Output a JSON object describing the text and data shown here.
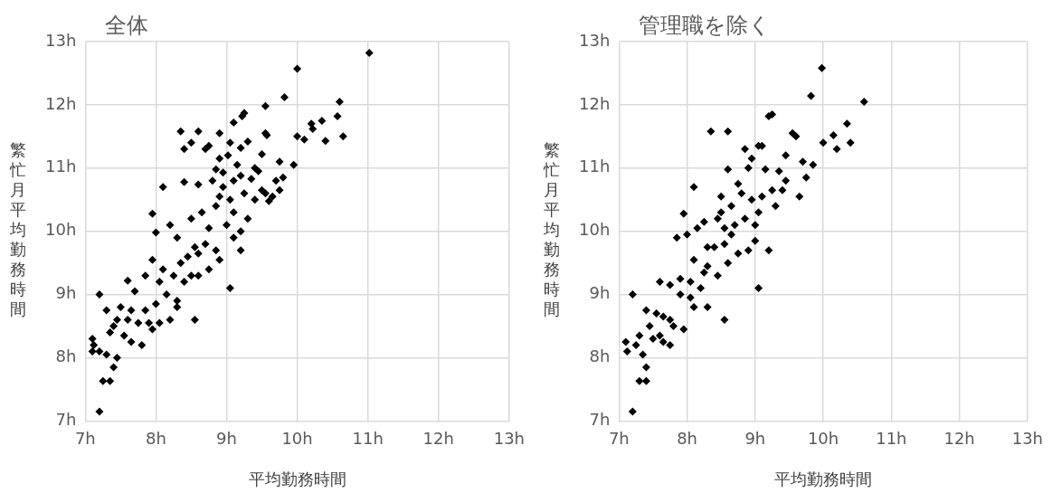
{
  "chart_data": [
    {
      "type": "scatter",
      "title": "全体",
      "xlabel": "平均勤務時間",
      "ylabel": "繁忙月平均勤務時間",
      "xlim": [
        7,
        13
      ],
      "ylim": [
        7,
        13
      ],
      "xticks": [
        {
          "value": 7,
          "label": "7h"
        },
        {
          "value": 8,
          "label": "8h"
        },
        {
          "value": 9,
          "label": "9h"
        },
        {
          "value": 10,
          "label": "10h"
        },
        {
          "value": 11,
          "label": "11h"
        },
        {
          "value": 12,
          "label": "12h"
        },
        {
          "value": 13,
          "label": "13h"
        }
      ],
      "yticks": [
        {
          "value": 7,
          "label": "7h"
        },
        {
          "value": 8,
          "label": "8h"
        },
        {
          "value": 9,
          "label": "9h"
        },
        {
          "value": 10,
          "label": "10h"
        },
        {
          "value": 11,
          "label": "11h"
        },
        {
          "value": 12,
          "label": "12h"
        },
        {
          "value": 13,
          "label": "13h"
        }
      ],
      "grid": true,
      "legend": false,
      "marker": "diamond",
      "color": "#000000",
      "x": [
        11.02,
        10.0,
        9.82,
        10.6,
        9.55,
        9.25,
        9.22,
        9.1,
        8.35,
        8.6,
        8.9,
        10.57,
        10.35,
        10.2,
        10.22,
        10.65,
        10.0,
        10.4,
        10.1,
        9.05,
        9.2,
        9.02,
        9.55,
        9.57,
        9.3,
        8.5,
        8.75,
        8.9,
        8.4,
        9.5,
        9.75,
        9.95,
        8.4,
        8.6,
        8.85,
        8.95,
        9.2,
        9.1,
        9.35,
        9.5,
        9.55,
        9.75,
        9.8,
        9.65,
        9.6,
        8.1,
        7.95,
        8.2,
        8.0,
        8.5,
        8.65,
        8.75,
        8.85,
        8.9,
        9.05,
        9.1,
        9.3,
        9.2,
        9.0,
        8.55,
        8.3,
        8.45,
        8.6,
        8.7,
        8.85,
        8.9,
        8.75,
        8.5,
        9.2,
        9.1,
        8.35,
        7.95,
        8.1,
        8.25,
        7.85,
        7.6,
        7.7,
        8.05,
        8.15,
        8.3,
        8.0,
        7.65,
        7.5,
        7.3,
        7.45,
        7.2,
        7.6,
        7.75,
        7.9,
        8.05,
        8.2,
        8.55,
        9.05,
        8.6,
        7.85,
        7.4,
        7.55,
        7.65,
        7.35,
        7.1,
        7.12,
        7.2,
        7.1,
        7.3,
        7.4,
        7.45,
        7.35,
        7.25,
        7.2,
        7.95,
        7.8,
        8.3,
        8.4,
        9.4,
        9.25,
        9.45,
        9.4,
        9.7,
        9.15,
        8.7,
        8.8,
        8.95
      ],
      "values": [
        12.82,
        12.57,
        12.12,
        12.05,
        11.98,
        11.87,
        11.82,
        11.72,
        11.58,
        11.58,
        11.55,
        11.82,
        11.75,
        11.7,
        11.62,
        11.5,
        11.5,
        11.43,
        11.45,
        11.4,
        11.32,
        11.2,
        11.55,
        11.52,
        11.42,
        11.4,
        11.35,
        11.15,
        11.3,
        11.22,
        11.1,
        11.05,
        10.78,
        10.74,
        10.98,
        10.93,
        10.88,
        10.8,
        10.83,
        10.65,
        10.6,
        10.65,
        10.85,
        10.55,
        10.48,
        10.7,
        10.28,
        10.1,
        9.98,
        10.2,
        10.3,
        10.05,
        10.4,
        10.55,
        10.5,
        10.3,
        10.2,
        10.0,
        10.1,
        9.75,
        9.9,
        9.6,
        9.65,
        9.8,
        9.7,
        9.55,
        9.4,
        9.3,
        9.7,
        9.9,
        9.5,
        9.55,
        9.4,
        9.3,
        9.3,
        9.22,
        9.05,
        9.2,
        9.0,
        8.9,
        8.85,
        8.75,
        8.8,
        8.75,
        8.6,
        9.0,
        8.6,
        8.55,
        8.55,
        8.55,
        8.6,
        8.6,
        9.1,
        9.3,
        8.75,
        8.5,
        8.35,
        8.25,
        8.4,
        8.3,
        8.2,
        8.1,
        8.1,
        8.05,
        7.85,
        8.0,
        7.63,
        7.63,
        7.15,
        8.45,
        8.2,
        8.8,
        9.2,
        10.5,
        10.6,
        10.95,
        11.0,
        10.8,
        11.05,
        11.3,
        10.8,
        10.7
      ]
    },
    {
      "type": "scatter",
      "title": "管理職を除く",
      "xlabel": "平均勤務時間",
      "ylabel": "繁忙月平均勤務時間",
      "xlim": [
        7,
        13
      ],
      "ylim": [
        7,
        13
      ],
      "xticks": [
        {
          "value": 7,
          "label": "7h"
        },
        {
          "value": 8,
          "label": "8h"
        },
        {
          "value": 9,
          "label": "9h"
        },
        {
          "value": 10,
          "label": "10h"
        },
        {
          "value": 11,
          "label": "11h"
        },
        {
          "value": 12,
          "label": "12h"
        },
        {
          "value": 13,
          "label": "13h"
        }
      ],
      "yticks": [
        {
          "value": 7,
          "label": "7h"
        },
        {
          "value": 8,
          "label": "8h"
        },
        {
          "value": 9,
          "label": "9h"
        },
        {
          "value": 10,
          "label": "10h"
        },
        {
          "value": 11,
          "label": "11h"
        },
        {
          "value": 12,
          "label": "12h"
        },
        {
          "value": 13,
          "label": "13h"
        }
      ],
      "grid": true,
      "legend": false,
      "marker": "diamond",
      "color": "#000000",
      "x": [
        9.98,
        9.82,
        10.6,
        9.25,
        9.2,
        10.35,
        10.15,
        10.0,
        10.2,
        10.4,
        8.35,
        8.6,
        9.05,
        9.1,
        9.55,
        9.6,
        8.95,
        8.85,
        9.45,
        9.7,
        9.85,
        8.6,
        8.9,
        9.15,
        9.35,
        9.45,
        9.75,
        9.4,
        9.65,
        8.75,
        8.8,
        8.95,
        9.1,
        9.25,
        9.3,
        8.1,
        8.5,
        8.5,
        8.45,
        8.65,
        8.7,
        8.55,
        8.85,
        9.0,
        9.05,
        7.95,
        8.25,
        8.0,
        8.15,
        8.65,
        9.0,
        9.2,
        8.4,
        8.3,
        8.55,
        8.75,
        8.9,
        7.85,
        8.1,
        8.3,
        8.6,
        8.45,
        7.9,
        8.05,
        8.25,
        7.75,
        7.6,
        7.9,
        8.05,
        8.2,
        8.3,
        8.55,
        9.05,
        8.1,
        7.2,
        7.4,
        7.55,
        7.65,
        7.75,
        7.45,
        7.8,
        7.6,
        7.65,
        7.75,
        7.3,
        7.1,
        7.12,
        7.25,
        7.35,
        7.4,
        7.3,
        7.4,
        7.2,
        7.95,
        7.5
      ],
      "values": [
        12.58,
        12.14,
        12.05,
        11.85,
        11.82,
        11.7,
        11.52,
        11.4,
        11.3,
        11.4,
        11.58,
        11.58,
        11.35,
        11.35,
        11.55,
        11.5,
        11.15,
        11.3,
        11.2,
        11.1,
        11.05,
        10.98,
        11.0,
        10.98,
        10.95,
        10.8,
        10.85,
        10.65,
        10.55,
        10.75,
        10.6,
        10.5,
        10.55,
        10.65,
        10.4,
        10.7,
        10.55,
        10.3,
        10.2,
        10.4,
        10.1,
        10.05,
        10.2,
        10.1,
        10.3,
        10.28,
        10.15,
        9.95,
        10.05,
        9.95,
        9.85,
        9.7,
        9.75,
        9.75,
        9.8,
        9.65,
        9.7,
        9.9,
        9.55,
        9.45,
        9.5,
        9.3,
        9.25,
        9.2,
        9.35,
        9.15,
        9.2,
        9.0,
        8.95,
        9.1,
        8.8,
        8.6,
        9.1,
        8.8,
        9.0,
        8.75,
        8.7,
        8.65,
        8.6,
        8.5,
        8.5,
        8.35,
        8.25,
        8.2,
        8.35,
        8.25,
        8.1,
        8.2,
        8.05,
        7.85,
        7.63,
        7.63,
        7.15,
        8.45,
        8.3
      ]
    }
  ]
}
